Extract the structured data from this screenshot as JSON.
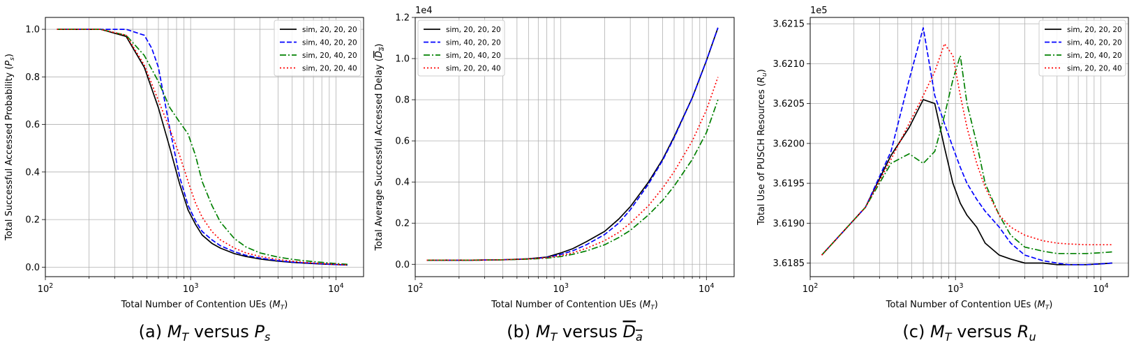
{
  "chart_data": [
    {
      "type": "line",
      "caption": "(a) M_T versus P_s",
      "caption_parts": {
        "prefix": "(a) ",
        "a": "M",
        "a_sub": "T",
        "mid": " versus ",
        "b": "P",
        "b_sub": "s",
        "b_overline": false
      },
      "xlabel": "Total Number of Contention UEs ($M_T$)",
      "xlabel_parts": {
        "pre": "Total Number of Contention UEs (",
        "sym": "M",
        "sub": "T",
        "post": ")"
      },
      "ylabel": "Total Successful Accessed Probability ($P_s$)",
      "ylabel_parts": {
        "pre": "Total Successful Accessed Probability (",
        "sym": "P",
        "sub": "s",
        "post": ")",
        "overline": false
      },
      "xscale": "log",
      "xlim": [
        100,
        15500
      ],
      "xticks": [
        {
          "v": 100,
          "base": "10",
          "exp": "2"
        },
        {
          "v": 1000,
          "base": "10",
          "exp": "3"
        },
        {
          "v": 10000,
          "base": "10",
          "exp": "4"
        }
      ],
      "ylim": [
        -0.04,
        1.05
      ],
      "yticks": [
        {
          "v": 0.0,
          "label": "0.0"
        },
        {
          "v": 0.2,
          "label": "0.2"
        },
        {
          "v": 0.4,
          "label": "0.4"
        },
        {
          "v": 0.6,
          "label": "0.6"
        },
        {
          "v": 0.8,
          "label": "0.8"
        },
        {
          "v": 1.0,
          "label": "1.0"
        }
      ],
      "offset_text": "",
      "grid": true,
      "legend_position": "top-right",
      "series": [
        {
          "name": "sim, 20, 20, 20",
          "color": "#000000",
          "dash": "solid",
          "x": [
            120,
            240,
            360,
            480,
            600,
            720,
            840,
            960,
            1080,
            1200,
            1400,
            1600,
            2000,
            2400,
            3000,
            4000,
            5000,
            6000,
            8000,
            10000,
            12000
          ],
          "y": [
            1.0,
            1.0,
            0.97,
            0.84,
            0.67,
            0.5,
            0.35,
            0.24,
            0.18,
            0.135,
            0.1,
            0.08,
            0.057,
            0.045,
            0.034,
            0.025,
            0.02,
            0.017,
            0.013,
            0.011,
            0.009
          ]
        },
        {
          "name": "sim, 40, 20, 20",
          "color": "#0000ff",
          "dash": "dashed",
          "x": [
            120,
            240,
            360,
            480,
            540,
            600,
            720,
            840,
            960,
            1080,
            1200,
            1400,
            1600,
            2000,
            2400,
            3000,
            4000,
            5000,
            6000,
            8000,
            10000,
            12000
          ],
          "y": [
            1.0,
            1.0,
            1.0,
            0.975,
            0.92,
            0.84,
            0.58,
            0.38,
            0.26,
            0.195,
            0.15,
            0.115,
            0.09,
            0.065,
            0.05,
            0.038,
            0.027,
            0.021,
            0.018,
            0.014,
            0.011,
            0.009
          ]
        },
        {
          "name": "sim, 20, 40, 20",
          "color": "#008000",
          "dash": "dashdot",
          "x": [
            120,
            240,
            360,
            480,
            600,
            720,
            840,
            960,
            1080,
            1200,
            1400,
            1600,
            2000,
            2400,
            3000,
            4000,
            5000,
            6000,
            8000,
            10000,
            12000
          ],
          "y": [
            1.0,
            1.0,
            0.975,
            0.89,
            0.78,
            0.67,
            0.61,
            0.56,
            0.47,
            0.36,
            0.26,
            0.19,
            0.12,
            0.085,
            0.06,
            0.042,
            0.033,
            0.027,
            0.02,
            0.015,
            0.012
          ]
        },
        {
          "name": "sim, 20, 20, 40",
          "color": "#ff0000",
          "dash": "dotted",
          "x": [
            120,
            240,
            360,
            480,
            600,
            720,
            840,
            960,
            1080,
            1200,
            1400,
            1600,
            2000,
            2400,
            3000,
            4000,
            5000,
            6000,
            8000,
            10000,
            12000
          ],
          "y": [
            1.0,
            1.0,
            0.975,
            0.85,
            0.7,
            0.58,
            0.47,
            0.36,
            0.27,
            0.21,
            0.15,
            0.115,
            0.08,
            0.06,
            0.045,
            0.032,
            0.025,
            0.02,
            0.015,
            0.012,
            0.009
          ]
        }
      ]
    },
    {
      "type": "line",
      "caption": "(b) M_T versus D_a (overlined)",
      "caption_parts": {
        "prefix": "(b) ",
        "a": "M",
        "a_sub": "T",
        "mid": " versus ",
        "b": "D",
        "b_sub": "a",
        "b_overline": true
      },
      "xlabel": "Total Number of Contention UEs ($M_T$)",
      "xlabel_parts": {
        "pre": "Total Number of Contention UEs (",
        "sym": "M",
        "sub": "T",
        "post": ")"
      },
      "ylabel": "Total Average Successful Accessed Delay ($\\overline{D_a}$)",
      "ylabel_parts": {
        "pre": "Total Average Successful Accessed Delay (",
        "sym": "D",
        "sub": "a",
        "post": ")",
        "overline": true
      },
      "xscale": "log",
      "xlim": [
        100,
        15500
      ],
      "xticks": [
        {
          "v": 100,
          "base": "10",
          "exp": "2"
        },
        {
          "v": 1000,
          "base": "10",
          "exp": "3"
        },
        {
          "v": 10000,
          "base": "10",
          "exp": "4"
        }
      ],
      "ylim": [
        -0.06,
        1.2
      ],
      "yticks": [
        {
          "v": 0.0,
          "label": "0.0"
        },
        {
          "v": 0.2,
          "label": "0.2"
        },
        {
          "v": 0.4,
          "label": "0.4"
        },
        {
          "v": 0.6,
          "label": "0.6"
        },
        {
          "v": 0.8,
          "label": "0.8"
        },
        {
          "v": 1.0,
          "label": "1.0"
        },
        {
          "v": 1.2,
          "label": "1.2"
        }
      ],
      "offset_text": "1e4",
      "grid": true,
      "legend_position": "top-left",
      "series": [
        {
          "name": "sim, 20, 20, 20",
          "color": "#000000",
          "dash": "solid",
          "x": [
            120,
            240,
            400,
            600,
            800,
            1000,
            1200,
            1500,
            2000,
            2500,
            3000,
            4000,
            5000,
            6000,
            8000,
            10000,
            12000
          ],
          "y": [
            0.02,
            0.02,
            0.022,
            0.027,
            0.035,
            0.055,
            0.075,
            0.11,
            0.16,
            0.22,
            0.28,
            0.4,
            0.51,
            0.62,
            0.81,
            0.99,
            1.15
          ]
        },
        {
          "name": "sim, 40, 20, 20",
          "color": "#0000ff",
          "dash": "dashed",
          "x": [
            120,
            240,
            400,
            600,
            800,
            1000,
            1200,
            1500,
            2000,
            2500,
            3000,
            4000,
            5000,
            6000,
            8000,
            10000,
            12000
          ],
          "y": [
            0.02,
            0.02,
            0.022,
            0.026,
            0.033,
            0.048,
            0.065,
            0.095,
            0.145,
            0.2,
            0.265,
            0.39,
            0.505,
            0.615,
            0.81,
            0.99,
            1.15
          ]
        },
        {
          "name": "sim, 20, 40, 20",
          "color": "#008000",
          "dash": "dashdot",
          "x": [
            120,
            240,
            400,
            600,
            800,
            1000,
            1200,
            1500,
            2000,
            2500,
            3000,
            4000,
            5000,
            6000,
            8000,
            10000,
            12000
          ],
          "y": [
            0.02,
            0.02,
            0.022,
            0.025,
            0.03,
            0.038,
            0.048,
            0.065,
            0.095,
            0.13,
            0.165,
            0.24,
            0.31,
            0.38,
            0.51,
            0.64,
            0.8
          ]
        },
        {
          "name": "sim, 20, 20, 40",
          "color": "#ff0000",
          "dash": "dotted",
          "x": [
            120,
            240,
            400,
            600,
            800,
            1000,
            1200,
            1500,
            2000,
            2500,
            3000,
            4000,
            5000,
            6000,
            8000,
            10000,
            12000
          ],
          "y": [
            0.02,
            0.02,
            0.022,
            0.026,
            0.032,
            0.042,
            0.055,
            0.078,
            0.115,
            0.155,
            0.2,
            0.285,
            0.37,
            0.45,
            0.6,
            0.75,
            0.91
          ]
        }
      ]
    },
    {
      "type": "line",
      "caption": "(c) M_T versus R_u",
      "caption_parts": {
        "prefix": "(c) ",
        "a": "M",
        "a_sub": "T",
        "mid": " versus ",
        "b": "R",
        "b_sub": "u",
        "b_overline": false
      },
      "xlabel": "Total Number of Contention UEs ($M_T$)",
      "xlabel_parts": {
        "pre": "Total Number of Contention UEs (",
        "sym": "M",
        "sub": "T",
        "post": ")"
      },
      "ylabel": "Total Use of PUSCH Resources ($R_u$)",
      "ylabel_parts": {
        "pre": "Total Use of PUSCH Resources (",
        "sym": "R",
        "sub": "u",
        "post": ")",
        "overline": false
      },
      "xscale": "log",
      "xlim": [
        100,
        15500
      ],
      "xticks": [
        {
          "v": 100,
          "base": "10",
          "exp": "2"
        },
        {
          "v": 1000,
          "base": "10",
          "exp": "3"
        },
        {
          "v": 10000,
          "base": "10",
          "exp": "4"
        }
      ],
      "ylim": [
        3.61833,
        3.62158
      ],
      "yticks": [
        {
          "v": 3.6185,
          "label": "3.6185"
        },
        {
          "v": 3.619,
          "label": "3.6190"
        },
        {
          "v": 3.6195,
          "label": "3.6195"
        },
        {
          "v": 3.62,
          "label": "3.6200"
        },
        {
          "v": 3.6205,
          "label": "3.6205"
        },
        {
          "v": 3.621,
          "label": "3.6210"
        },
        {
          "v": 3.6215,
          "label": "3.6215"
        }
      ],
      "offset_text": "1e5",
      "grid": true,
      "legend_position": "top-right",
      "series": [
        {
          "name": "sim, 20, 20, 20",
          "color": "#000000",
          "dash": "solid",
          "x": [
            120,
            240,
            360,
            480,
            600,
            720,
            840,
            960,
            1080,
            1200,
            1400,
            1600,
            2000,
            2400,
            3000,
            4000,
            5000,
            6000,
            8000,
            10000,
            12000
          ],
          "y": [
            3.6186,
            3.6192,
            3.61985,
            3.6202,
            3.62055,
            3.6205,
            3.61995,
            3.6195,
            3.61925,
            3.6191,
            3.61895,
            3.61875,
            3.6186,
            3.61855,
            3.6185,
            3.6185,
            3.61848,
            3.61848,
            3.61848,
            3.61849,
            3.6185
          ]
        },
        {
          "name": "sim, 40, 20, 20",
          "color": "#0000ff",
          "dash": "dashed",
          "x": [
            120,
            240,
            360,
            480,
            600,
            720,
            840,
            960,
            1080,
            1200,
            1400,
            1600,
            2000,
            2400,
            3000,
            4000,
            5000,
            6000,
            8000,
            10000,
            12000
          ],
          "y": [
            3.6186,
            3.6192,
            3.6199,
            3.6208,
            3.62145,
            3.6206,
            3.62025,
            3.61995,
            3.6197,
            3.6195,
            3.6193,
            3.61915,
            3.61895,
            3.61875,
            3.6186,
            3.61853,
            3.6185,
            3.61848,
            3.61848,
            3.61849,
            3.6185
          ]
        },
        {
          "name": "sim, 20, 40, 20",
          "color": "#008000",
          "dash": "dashdot",
          "x": [
            120,
            240,
            360,
            480,
            600,
            720,
            840,
            960,
            1080,
            1200,
            1400,
            1600,
            2000,
            2400,
            3000,
            4000,
            5000,
            6000,
            8000,
            10000,
            12000
          ],
          "y": [
            3.6186,
            3.6192,
            3.61975,
            3.61987,
            3.61975,
            3.6199,
            3.62035,
            3.6208,
            3.6211,
            3.6205,
            3.62,
            3.6195,
            3.6191,
            3.61885,
            3.6187,
            3.61865,
            3.61862,
            3.61862,
            3.61862,
            3.61863,
            3.61864
          ]
        },
        {
          "name": "sim, 20, 20, 40",
          "color": "#ff0000",
          "dash": "dotted",
          "x": [
            120,
            240,
            360,
            480,
            600,
            720,
            840,
            960,
            1080,
            1200,
            1400,
            1600,
            2000,
            2400,
            3000,
            4000,
            5000,
            6000,
            8000,
            10000,
            12000
          ],
          "y": [
            3.6186,
            3.6192,
            3.6198,
            3.62025,
            3.6206,
            3.6209,
            3.62125,
            3.6211,
            3.6206,
            3.6202,
            3.61975,
            3.61945,
            3.6191,
            3.61895,
            3.61885,
            3.61878,
            3.61875,
            3.61874,
            3.61873,
            3.61873,
            3.61873
          ]
        }
      ]
    }
  ]
}
